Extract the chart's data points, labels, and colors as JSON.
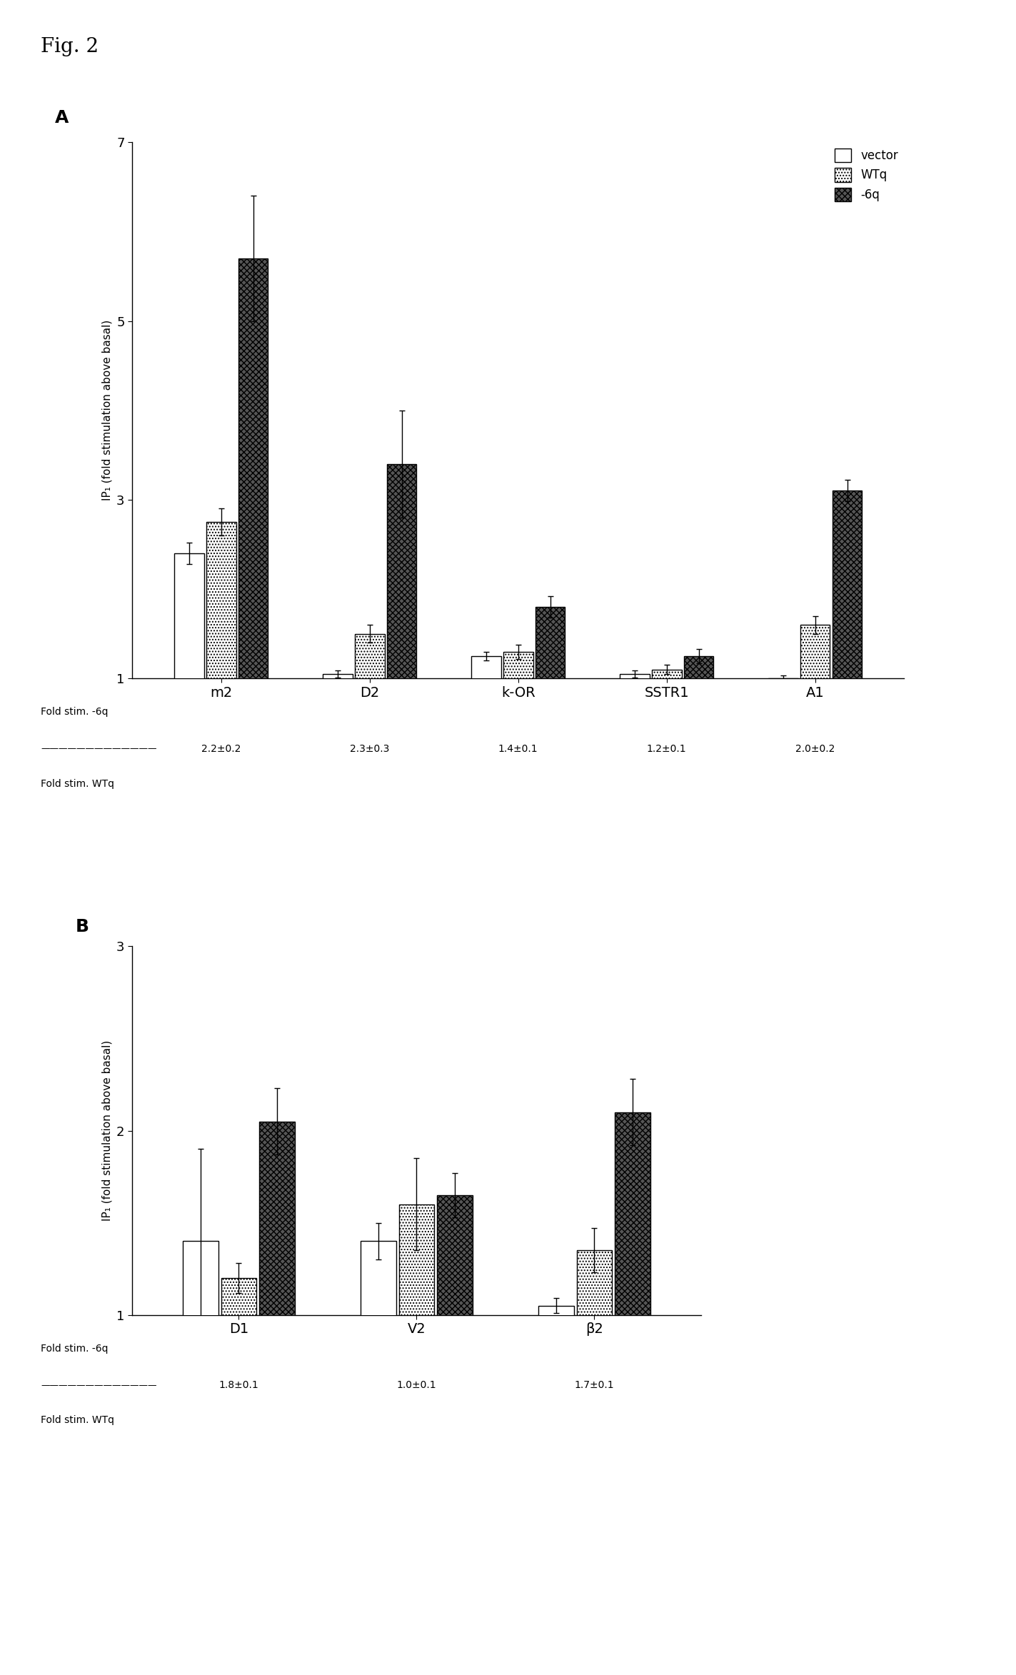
{
  "panel_A": {
    "groups": [
      "m2",
      "D2",
      "k-OR",
      "SSTR1",
      "A1"
    ],
    "vector": [
      2.4,
      1.05,
      1.25,
      1.05,
      1.0
    ],
    "vector_err": [
      0.12,
      0.04,
      0.05,
      0.04,
      0.03
    ],
    "WTq": [
      2.75,
      1.5,
      1.3,
      1.1,
      1.6
    ],
    "WTq_err": [
      0.15,
      0.1,
      0.08,
      0.05,
      0.1
    ],
    "neg6q": [
      5.7,
      3.4,
      1.8,
      1.25,
      3.1
    ],
    "neg6q_err": [
      0.7,
      0.6,
      0.12,
      0.08,
      0.12
    ],
    "ylim": [
      1,
      7
    ],
    "yticks": [
      1,
      3,
      5,
      7
    ],
    "ylabel": "IP₁ (fold stimulation above basal)",
    "fold_ratios": [
      "2.2±0.2",
      "2.3±0.3",
      "1.4±0.1",
      "1.2±0.1",
      "2.0±0.2"
    ],
    "label": "A"
  },
  "panel_B": {
    "groups": [
      "D1",
      "V2",
      "β2"
    ],
    "vector": [
      1.4,
      1.4,
      1.05
    ],
    "vector_err": [
      0.5,
      0.1,
      0.04
    ],
    "WTq": [
      1.2,
      1.6,
      1.35
    ],
    "WTq_err": [
      0.08,
      0.25,
      0.12
    ],
    "neg6q": [
      2.05,
      1.65,
      2.1
    ],
    "neg6q_err": [
      0.18,
      0.12,
      0.18
    ],
    "ylim": [
      1,
      3
    ],
    "yticks": [
      1,
      2,
      3
    ],
    "ylabel": "IP₁ (fold stimulation above basal)",
    "fold_ratios": [
      "1.8±0.1",
      "1.0±0.1",
      "1.7±0.1"
    ],
    "label": "B"
  },
  "legend_labels": [
    "vector",
    "WTq",
    "-6q"
  ],
  "bar_width": 0.2,
  "background_color": "white",
  "fig_title": "Fig. 2"
}
